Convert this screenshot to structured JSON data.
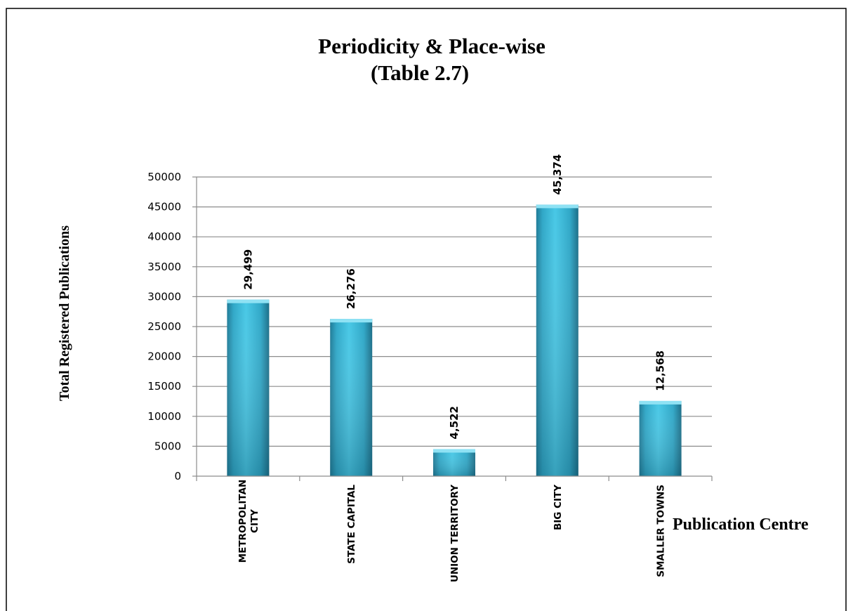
{
  "chart_data": {
    "type": "bar",
    "title": "Periodicity & Place-wise",
    "subtitle": "(Table 2.7)",
    "xlabel": "Publication Centre",
    "ylabel": "Total Registered Publications",
    "categories": [
      [
        "METROPOLITAN",
        "CITY"
      ],
      [
        "STATE CAPITAL"
      ],
      [
        "UNION TERRITORY"
      ],
      [
        "BIG CITY"
      ],
      [
        "SMALLER TOWNS"
      ]
    ],
    "values": [
      29499,
      26276,
      4522,
      45374,
      12568
    ],
    "value_labels": [
      "29,499",
      "26,276",
      "4,522",
      "45,374",
      "12,568"
    ],
    "ylim": [
      0,
      50000
    ],
    "y_ticks": [
      0,
      5000,
      10000,
      15000,
      20000,
      25000,
      30000,
      35000,
      40000,
      45000,
      50000
    ],
    "y_tick_labels": [
      "0",
      "5000",
      "10000",
      "15000",
      "20000",
      "25000",
      "30000",
      "35000",
      "40000",
      "45000",
      "50000"
    ],
    "grid": true,
    "legend": "none",
    "colors": {
      "bar_light": "#48c8e6",
      "bar_mid": "#2fa7c7",
      "bar_dark": "#1e7a96",
      "bar_top": "#8fe2f4",
      "gridline": "#8c8c8c",
      "border": "#000000"
    }
  }
}
